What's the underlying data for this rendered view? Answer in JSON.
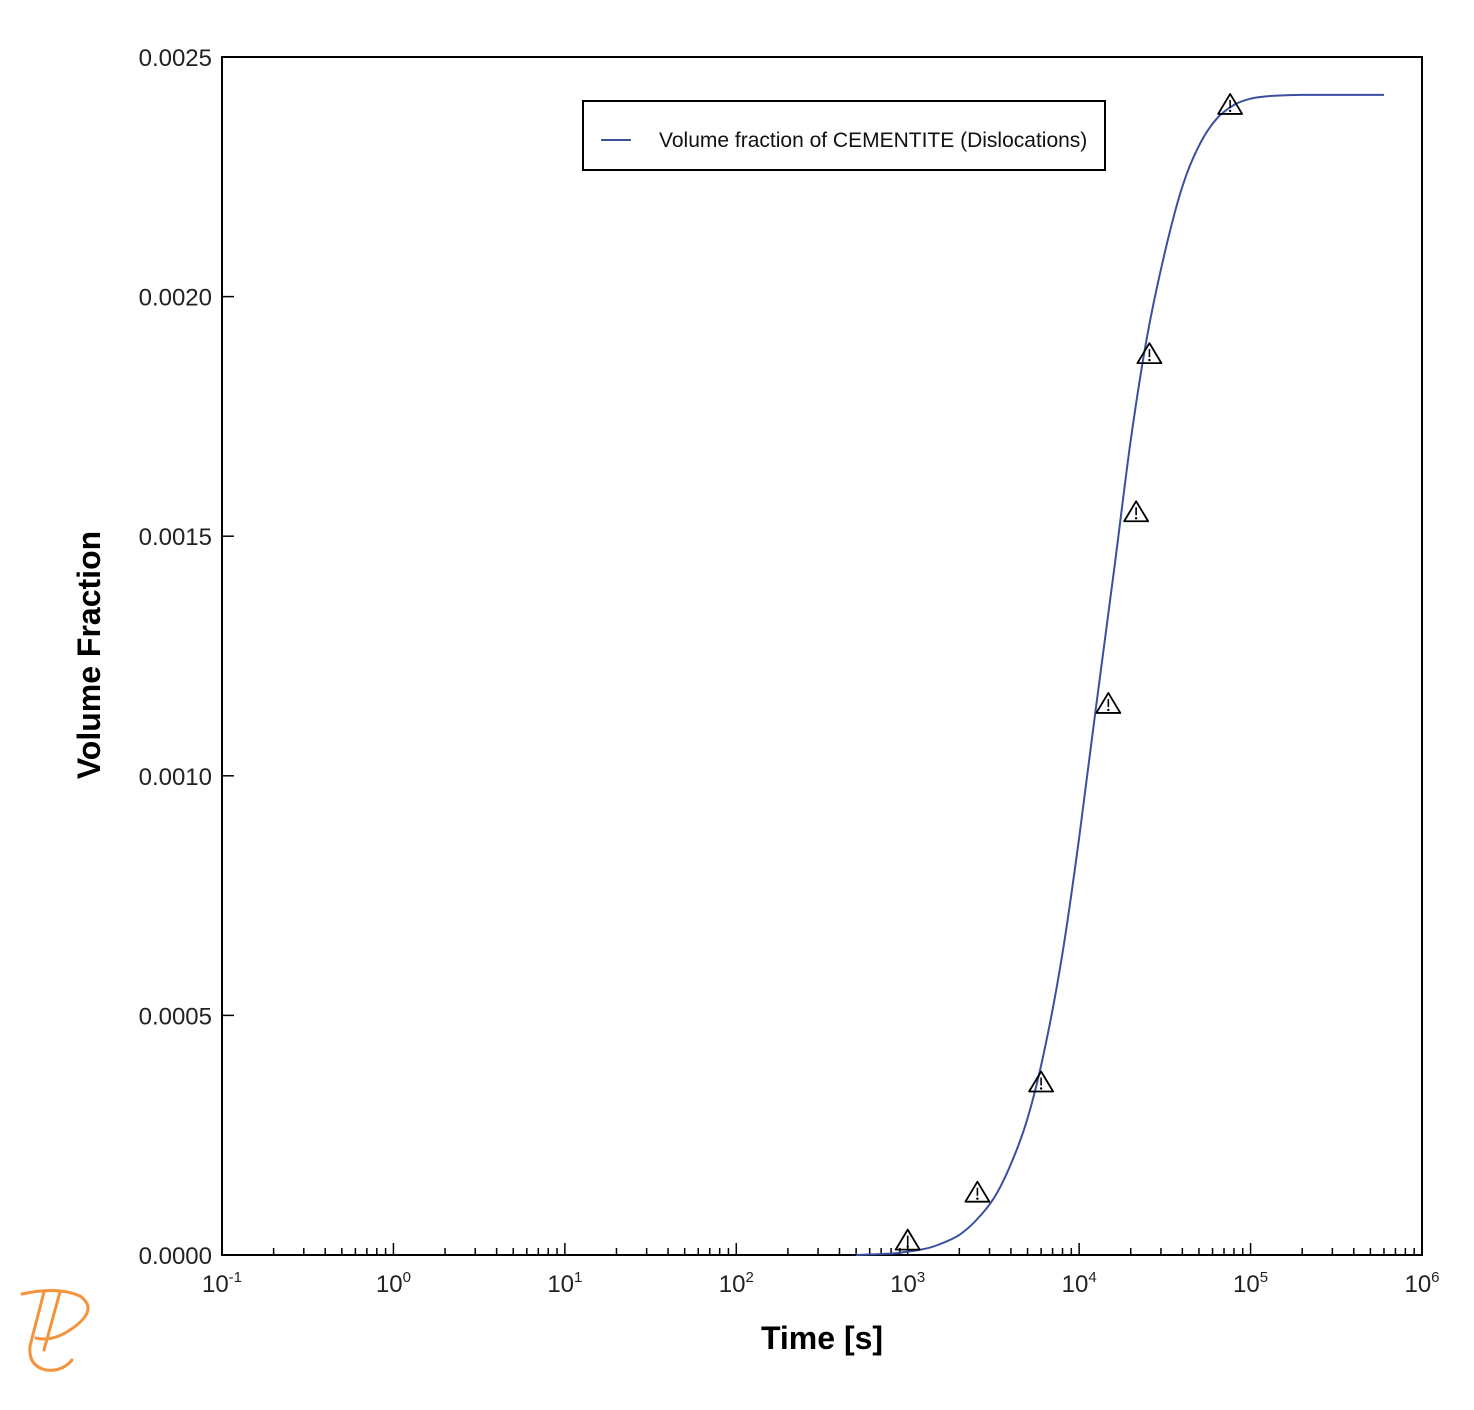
{
  "chart_data": {
    "type": "line",
    "title": "",
    "xlabel": "Time [s]",
    "ylabel": "Volume Fraction",
    "xscale": "log",
    "xlim": [
      0.1,
      1000000
    ],
    "ylim": [
      0,
      0.0025
    ],
    "x_ticks": [
      {
        "value": 0.1,
        "base": "10",
        "exp": "-1"
      },
      {
        "value": 1,
        "base": "10",
        "exp": "0"
      },
      {
        "value": 10,
        "base": "10",
        "exp": "1"
      },
      {
        "value": 100,
        "base": "10",
        "exp": "2"
      },
      {
        "value": 1000,
        "base": "10",
        "exp": "3"
      },
      {
        "value": 10000,
        "base": "10",
        "exp": "4"
      },
      {
        "value": 100000,
        "base": "10",
        "exp": "5"
      },
      {
        "value": 1000000,
        "base": "10",
        "exp": "6"
      }
    ],
    "y_ticks": [
      {
        "value": 0,
        "label": "0.0000"
      },
      {
        "value": 0.0005,
        "label": "0.0005"
      },
      {
        "value": 0.001,
        "label": "0.0010"
      },
      {
        "value": 0.0015,
        "label": "0.0015"
      },
      {
        "value": 0.002,
        "label": "0.0020"
      },
      {
        "value": 0.0025,
        "label": "0.0025"
      }
    ],
    "grid": false,
    "legend": {
      "position": "top-center",
      "entries": [
        "Volume fraction of CEMENTITE (Dislocations)"
      ]
    },
    "series": [
      {
        "name": "Volume fraction of CEMENTITE (Dislocations)",
        "kind": "line",
        "color": "#3a4fa0",
        "x": [
          500,
          800,
          1000,
          1300,
          1600,
          2000,
          2500,
          3200,
          4000,
          5000,
          6300,
          8000,
          10000,
          12500,
          16000,
          20000,
          25000,
          32000,
          40000,
          50000,
          63000,
          80000,
          100000,
          125000,
          160000,
          200000,
          300000,
          600000
        ],
        "y": [
          0.0,
          3e-06,
          7e-06,
          1.4e-05,
          2.5e-05,
          4.2e-05,
          7.2e-05,
          0.00012,
          0.00019,
          0.000285,
          0.00043,
          0.00063,
          0.00087,
          0.00114,
          0.00143,
          0.0017,
          0.00192,
          0.0021,
          0.00223,
          0.002315,
          0.00237,
          0.0024,
          0.002413,
          0.002418,
          0.00242,
          0.002421,
          0.002421,
          0.002421
        ]
      },
      {
        "name": "",
        "kind": "markers",
        "marker": "triangle-warning",
        "color": "#000000",
        "x": [
          1000,
          2550,
          6000,
          14800,
          21500,
          25700,
          76000
        ],
        "y": [
          3e-05,
          0.00013,
          0.00036,
          0.00115,
          0.00155,
          0.00188,
          0.0024
        ]
      }
    ]
  },
  "logo": {
    "name": "thermo-calc-logo",
    "color": "#f5923e"
  }
}
